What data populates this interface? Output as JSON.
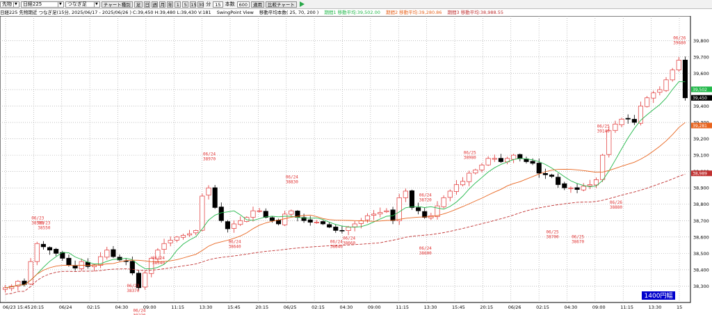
{
  "toolbar": {
    "market": "先物",
    "symbol": "日経225",
    "mode": "つなぎ足",
    "btn_chart_type": "チャート種別",
    "btn_day": "足",
    "small_buttons": [
      "日",
      "週",
      "月",
      "年",
      "1",
      "5",
      "15",
      "30"
    ],
    "btn_min": "分",
    "interval_value": "15",
    "bars_label": "本数",
    "bars_value": "600",
    "btn_apply": "適用",
    "btn_compare": "比較チャート",
    "colors": {
      "play": "#2aa84a"
    }
  },
  "info": {
    "title": "日経225 先物期近 つなぎ足(15分, 2025/06/17 - 2025/06/26 ) C:39,450 H:39,480 L:39,430 V:181",
    "view": "SwingPoint View",
    "ma_param": "移動平均本数( 25, 70, 200 )",
    "ma1": "期間1 移動平均:39,502.00",
    "ma2": "期間2 移動平均:39,280.86",
    "ma3": "期間3 移動平均:38,988.55",
    "colors": {
      "ma1": "#22b84a",
      "ma2": "#e8641e",
      "ma3": "#c03030"
    }
  },
  "chart_data": {
    "type": "candlestick",
    "ylim": [
      38200,
      39950
    ],
    "y_ticks": [
      "38,300",
      "38,400",
      "38,500",
      "38,600",
      "38,700",
      "38,800",
      "38,900",
      "39,000",
      "39,100",
      "39,200",
      "39,300",
      "39,400",
      "39,500",
      "39,600",
      "39,700",
      "39,800"
    ],
    "price_tags": [
      {
        "value": 39502,
        "label": "39,502",
        "color": "#22b84a"
      },
      {
        "value": 39450,
        "label": "39,450",
        "color": "#000000"
      },
      {
        "value": 39281,
        "label": "39,281",
        "color": "#e8641e"
      },
      {
        "value": 38989,
        "label": "38,989",
        "color": "#c03030"
      }
    ],
    "x_ticks": [
      "06/23 15:45",
      "20:15",
      "06/24",
      "02:15",
      "04:30",
      "09:00",
      "11:15",
      "13:30",
      "15:45",
      "20:15",
      "06/25",
      "02:15",
      "04:30",
      "09:00",
      "11:15",
      "13:30",
      "15:45",
      "20:15",
      "06/26",
      "02:15",
      "04:30",
      "09:00",
      "11:15",
      "13:30",
      "15"
    ],
    "swing_points": [
      {
        "date": "06/23",
        "price": "38580",
        "kind": "high"
      },
      {
        "date": "06/23",
        "price": "38550",
        "kind": "high"
      },
      {
        "date": "06/23",
        "price": "38370",
        "kind": "low"
      },
      {
        "date": "06/24",
        "price": "38220",
        "kind": "low"
      },
      {
        "date": "06/24",
        "price": "38540",
        "kind": "low"
      },
      {
        "date": "06/24",
        "price": "38970",
        "kind": "high"
      },
      {
        "date": "06/24",
        "price": "38640",
        "kind": "low"
      },
      {
        "date": "06/24",
        "price": "38830",
        "kind": "high"
      },
      {
        "date": "06/24",
        "price": "38640",
        "kind": "low"
      },
      {
        "date": "06/24",
        "price": "38660",
        "kind": "low"
      },
      {
        "date": "06/24",
        "price": "38720",
        "kind": "high"
      },
      {
        "date": "06/24",
        "price": "38600",
        "kind": "low"
      },
      {
        "date": "06/25",
        "price": "38980",
        "kind": "high"
      },
      {
        "date": "06/25",
        "price": "38700",
        "kind": "low"
      },
      {
        "date": "06/25",
        "price": "38670",
        "kind": "low"
      },
      {
        "date": "06/25",
        "price": "39140",
        "kind": "high"
      },
      {
        "date": "06/26",
        "price": "38880",
        "kind": "low"
      },
      {
        "date": "06/26",
        "price": "39680",
        "kind": "high"
      }
    ],
    "close_path": [
      38290,
      38300,
      38330,
      38310,
      38450,
      38560,
      38540,
      38520,
      38500,
      38470,
      38430,
      38410,
      38450,
      38420,
      38430,
      38480,
      38520,
      38480,
      38460,
      38450,
      38380,
      38290,
      38380,
      38470,
      38520,
      38560,
      38580,
      38600,
      38610,
      38620,
      38640,
      38850,
      38900,
      38780,
      38700,
      38650,
      38680,
      38700,
      38720,
      38760,
      38760,
      38720,
      38700,
      38680,
      38740,
      38760,
      38720,
      38700,
      38690,
      38690,
      38680,
      38660,
      38640,
      38640,
      38660,
      38680,
      38700,
      38730,
      38740,
      38750,
      38760,
      38700,
      38840,
      38880,
      38780,
      38760,
      38720,
      38730,
      38790,
      38840,
      38880,
      38920,
      38940,
      38990,
      39010,
      39040,
      39080,
      39080,
      39060,
      39080,
      39100,
      39080,
      39060,
      39050,
      38990,
      38980,
      38970,
      38920,
      38900,
      38900,
      38890,
      38910,
      38920,
      38950,
      39100,
      39250,
      39290,
      39320,
      39320,
      39300,
      39400,
      39450,
      39480,
      39500,
      39560,
      39620,
      39680,
      39450
    ],
    "price_width_box": "1400円幅"
  }
}
